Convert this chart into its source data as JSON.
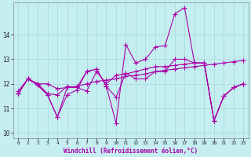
{
  "xlabel": "Windchill (Refroidissement éolien,°C)",
  "background_color": "#c5eef0",
  "line_color": "#aa00aa",
  "grid_color": "#aadddd",
  "xlim": [
    -0.5,
    23.5
  ],
  "ylim": [
    9.8,
    15.3
  ],
  "yticks": [
    10,
    11,
    12,
    13,
    14
  ],
  "xticks": [
    0,
    1,
    2,
    3,
    4,
    5,
    6,
    7,
    8,
    9,
    10,
    11,
    12,
    13,
    14,
    15,
    16,
    17,
    18,
    19,
    20,
    21,
    22,
    23
  ],
  "line1_x": [
    0,
    1,
    2,
    3,
    4,
    5,
    6,
    7,
    8,
    9,
    10,
    11,
    12,
    13,
    14,
    15,
    16,
    17,
    18,
    19,
    20,
    21,
    22,
    23
  ],
  "line1_y": [
    11.7,
    12.2,
    12.0,
    12.0,
    11.8,
    11.85,
    11.9,
    12.0,
    12.1,
    12.15,
    12.2,
    12.3,
    12.35,
    12.4,
    12.5,
    12.55,
    12.6,
    12.65,
    12.7,
    12.75,
    12.8,
    12.85,
    12.9,
    12.95
  ],
  "line2_x": [
    0,
    1,
    2,
    3,
    4,
    5,
    6,
    7,
    8,
    9,
    10,
    11,
    12,
    13,
    14,
    15,
    16,
    17,
    18,
    19,
    20,
    21,
    22,
    23
  ],
  "line2_y": [
    11.6,
    12.2,
    12.0,
    11.6,
    11.55,
    11.9,
    11.85,
    12.5,
    12.6,
    11.9,
    11.45,
    12.45,
    12.2,
    12.2,
    12.5,
    12.5,
    13.0,
    13.0,
    12.85,
    12.85,
    10.5,
    11.5,
    11.85,
    12.0
  ],
  "line3_x": [
    0,
    1,
    2,
    3,
    4,
    5,
    6,
    7,
    8,
    9,
    10,
    11,
    12,
    13,
    14,
    15,
    16,
    17,
    18,
    19,
    20,
    21,
    22,
    23
  ],
  "line3_y": [
    11.6,
    12.2,
    11.95,
    11.55,
    10.65,
    11.55,
    11.75,
    12.5,
    12.6,
    11.9,
    10.4,
    13.6,
    12.85,
    13.0,
    13.5,
    13.55,
    14.85,
    15.1,
    12.85,
    12.85,
    10.5,
    11.5,
    11.85,
    12.0
  ],
  "line4_x": [
    0,
    1,
    2,
    3,
    4,
    5,
    6,
    7,
    8,
    9,
    10,
    11,
    12,
    13,
    14,
    15,
    16,
    17,
    18,
    19,
    20,
    21,
    22,
    23
  ],
  "line4_y": [
    11.6,
    12.2,
    11.95,
    11.55,
    10.65,
    11.85,
    11.85,
    11.7,
    12.5,
    12.0,
    12.35,
    12.4,
    12.5,
    12.6,
    12.7,
    12.7,
    12.75,
    12.8,
    12.85,
    12.85,
    10.5,
    11.5,
    11.85,
    12.0
  ]
}
